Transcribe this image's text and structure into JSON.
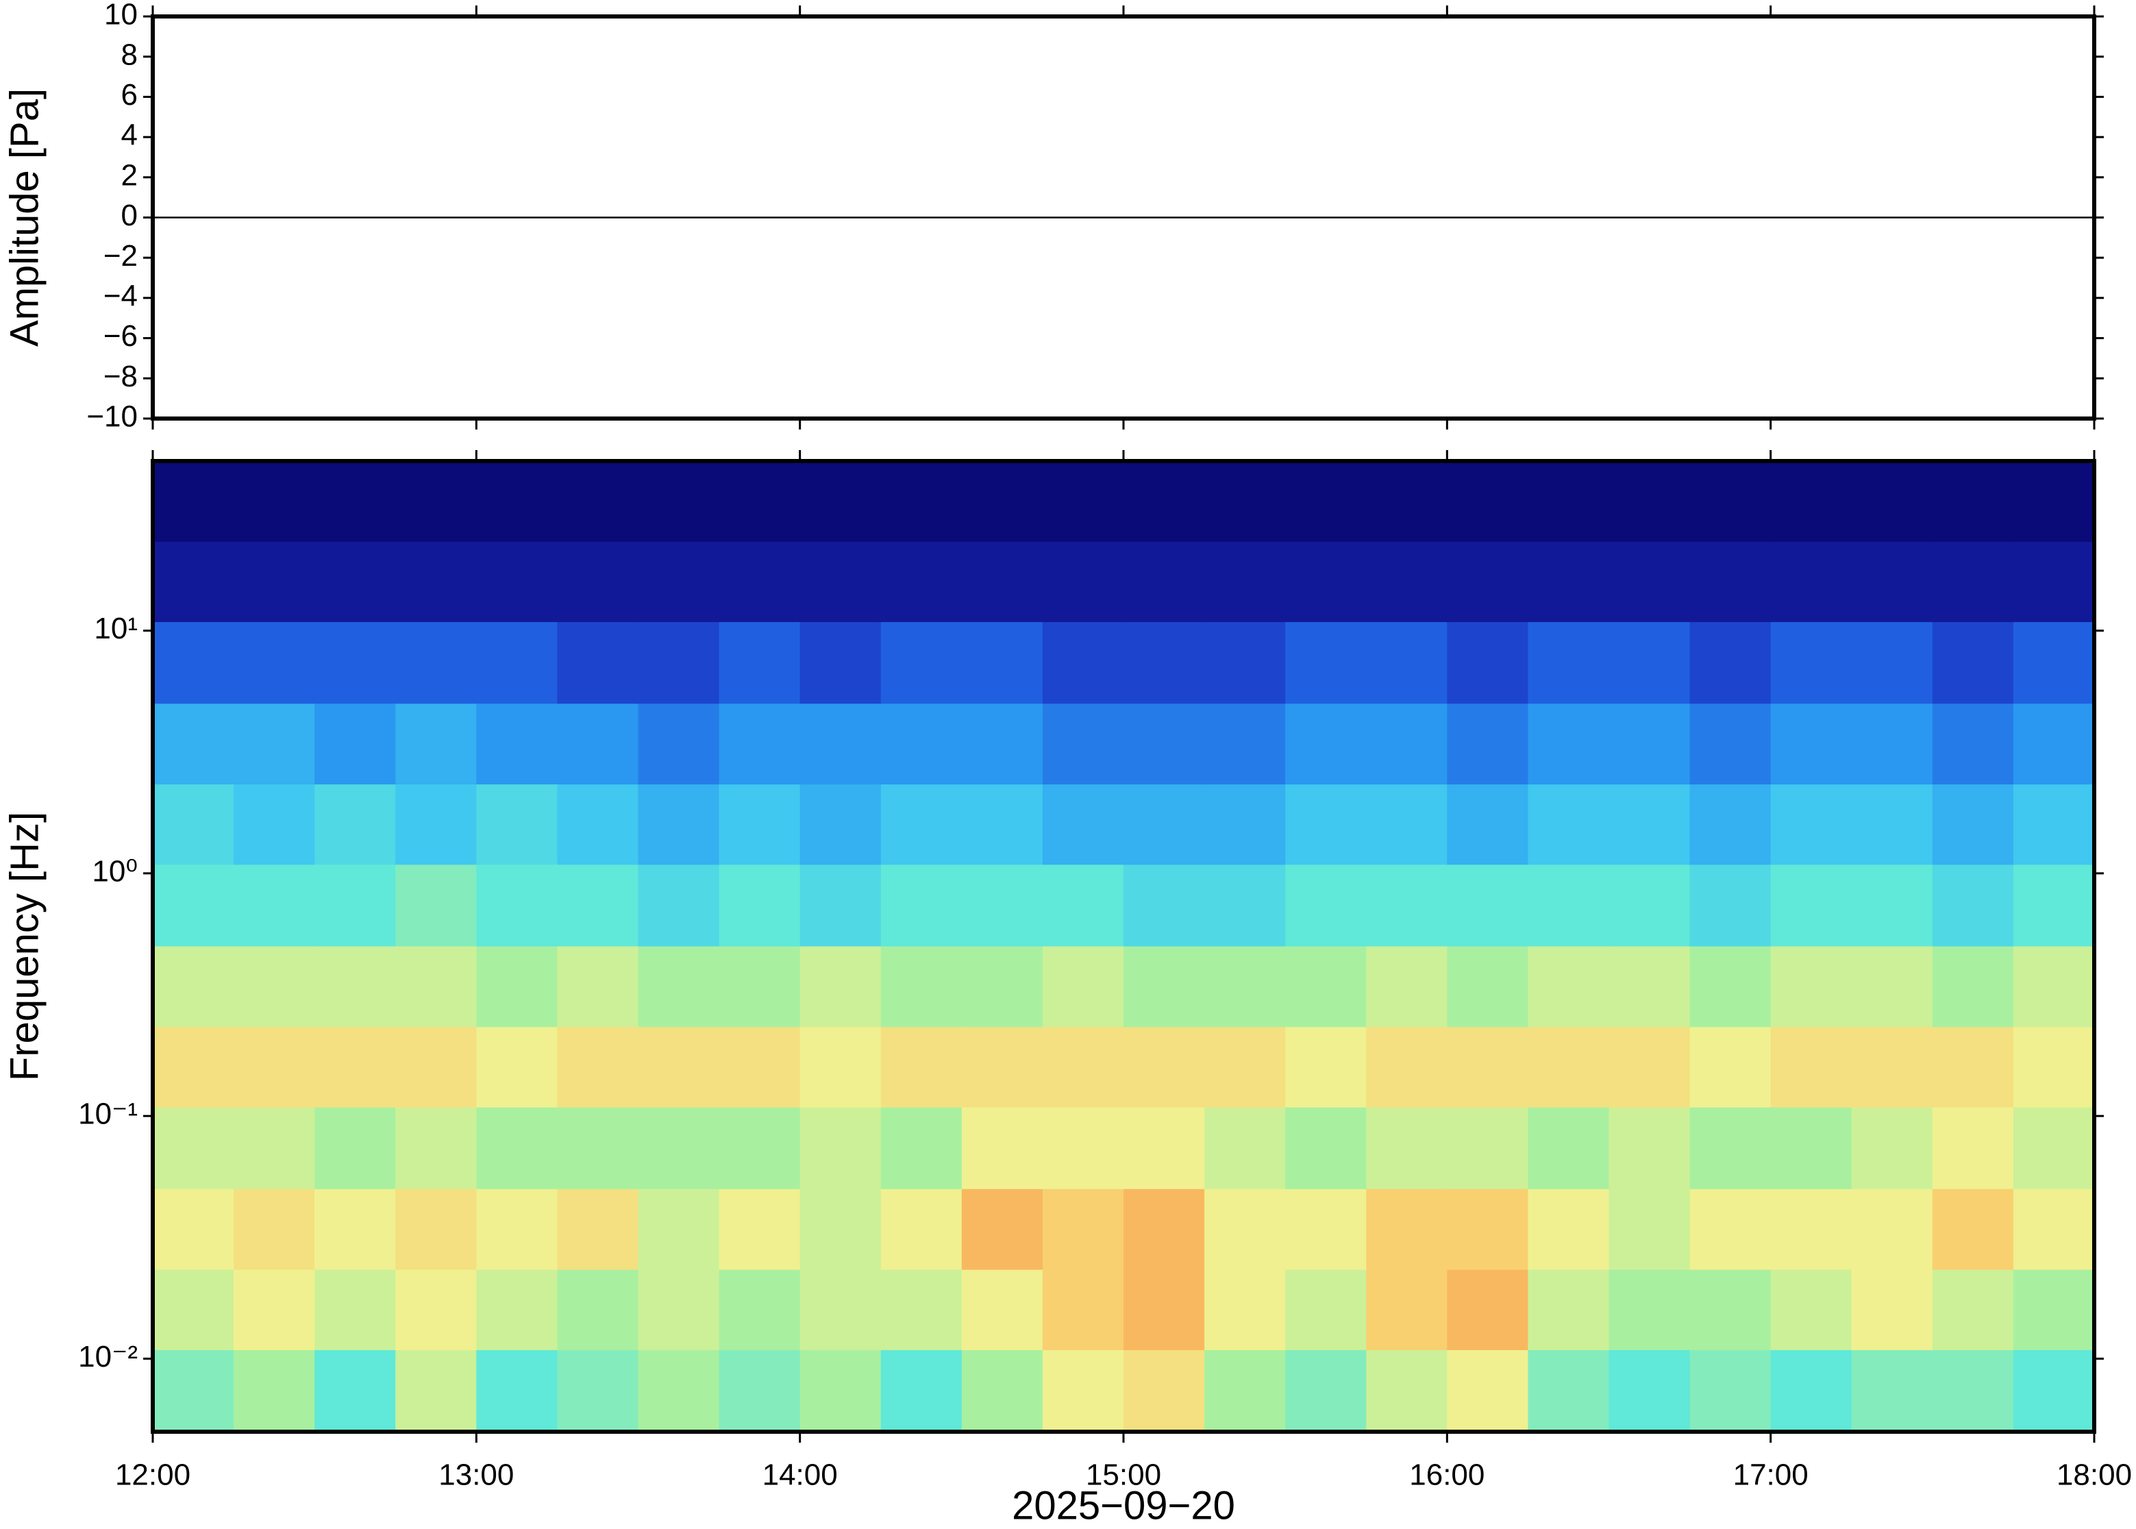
{
  "chart_data": [
    {
      "type": "line",
      "ylabel": "Amplitude [Pa]",
      "x": [
        "12:00",
        "13:00",
        "14:00",
        "15:00",
        "16:00",
        "17:00",
        "18:00"
      ],
      "series": [
        {
          "color": "#000000",
          "values": [
            0,
            0,
            0,
            0,
            0,
            0,
            0
          ]
        }
      ],
      "xlim": [
        "12:00",
        "18:00"
      ],
      "xticks": [
        "12:00",
        "13:00",
        "14:00",
        "15:00",
        "16:00",
        "17:00",
        "18:00"
      ],
      "ylim": [
        -10,
        10
      ],
      "yticks": [
        {
          "value": -10,
          "label": "−10"
        },
        {
          "value": -8,
          "label": "−8"
        },
        {
          "value": -6,
          "label": "−6"
        },
        {
          "value": -4,
          "label": "−4"
        },
        {
          "value": -2,
          "label": "−2"
        },
        0,
        2,
        4,
        6,
        8,
        10
      ]
    },
    {
      "type": "heatmap",
      "ylabel": "Frequency [Hz]",
      "xlabel": "2025−09−20",
      "log_y": true,
      "xlim": [
        "12:00",
        "18:00"
      ],
      "xticks": [
        "12:00",
        "13:00",
        "14:00",
        "15:00",
        "16:00",
        "17:00",
        "18:00"
      ],
      "ylim": [
        0.005,
        50
      ],
      "yticks": [
        {
          "value": 0.01,
          "label": "10⁻²"
        },
        {
          "value": 0.1,
          "label": "10⁻¹"
        },
        {
          "value": 1,
          "label": "10⁰"
        },
        {
          "value": 10,
          "label": "10¹"
        }
      ],
      "x": [
        "12:00",
        "12:15",
        "12:30",
        "12:45",
        "13:00",
        "13:15",
        "13:30",
        "13:45",
        "14:00",
        "14:15",
        "14:30",
        "14:45",
        "15:00",
        "15:15",
        "15:30",
        "15:45",
        "16:00",
        "16:15",
        "16:30",
        "16:45",
        "17:00",
        "17:15",
        "17:30",
        "17:45"
      ],
      "y": [
        0.0074,
        0.016,
        0.034,
        0.074,
        0.16,
        0.34,
        0.74,
        1.6,
        3.4,
        7.4,
        16,
        34
      ],
      "clim": [
        0,
        10
      ],
      "colors": [
        "#0a0a78",
        "#1a28b8",
        "#2060e0",
        "#2a98f0",
        "#40c8f0",
        "#60e8d8",
        "#a8f0a0",
        "#f0f090",
        "#f8d070",
        "#f8a050",
        "#e86030"
      ],
      "values": [
        [
          5.5,
          6,
          5,
          6.5,
          5,
          5.5,
          6,
          5.5,
          6,
          5,
          6,
          7,
          7.5,
          6,
          5.5,
          6.5,
          7,
          5.5,
          5,
          5.5,
          5,
          5.5,
          5.5,
          5
        ],
        [
          6.5,
          7,
          6.5,
          7,
          6.5,
          6,
          6.5,
          6,
          6.5,
          6.5,
          7,
          8,
          8.5,
          7,
          6.5,
          8,
          8.5,
          6.5,
          6,
          6,
          6.5,
          7,
          6.5,
          6
        ],
        [
          7,
          7.5,
          7,
          7.5,
          7,
          7.5,
          6.5,
          7,
          6.5,
          7,
          8.5,
          8,
          8.5,
          7,
          7,
          8,
          8,
          7,
          6.5,
          7,
          7,
          7,
          8,
          7
        ],
        [
          6.5,
          6.5,
          6,
          6.5,
          6,
          6,
          6,
          6,
          6.5,
          6,
          7,
          7,
          7,
          6.5,
          6,
          6.5,
          6.5,
          6,
          6.5,
          6,
          6,
          6.5,
          7,
          6.5
        ],
        [
          7.5,
          7.5,
          7.5,
          7.5,
          7,
          7.5,
          7.5,
          7.5,
          7,
          7.5,
          7.5,
          7.5,
          7.5,
          7.5,
          7,
          7.5,
          7.5,
          7.5,
          7.5,
          7,
          7.5,
          7.5,
          7.5,
          7
        ],
        [
          6.5,
          6.5,
          6.5,
          6.5,
          6,
          6.5,
          6,
          6,
          6.5,
          6,
          6,
          6.5,
          6,
          6,
          6,
          6.5,
          6,
          6.5,
          6.5,
          6,
          6.5,
          6.5,
          6,
          6.5
        ],
        [
          5,
          5,
          5,
          5.5,
          5,
          5,
          4.5,
          5,
          4.5,
          5,
          5,
          5,
          4.5,
          4.5,
          5,
          5,
          5,
          5,
          5,
          4.5,
          5,
          5,
          4.5,
          5
        ],
        [
          4.5,
          4,
          4.5,
          4,
          4.5,
          4,
          3.5,
          4,
          3.5,
          4,
          4,
          3.5,
          3.5,
          3.5,
          4,
          4,
          3.5,
          4,
          4,
          3.5,
          4,
          4,
          3.5,
          4
        ],
        [
          3.5,
          3.5,
          3,
          3.5,
          3,
          3,
          2.5,
          3,
          3,
          3,
          3,
          2.5,
          2.5,
          2.5,
          3,
          3,
          2.5,
          3,
          3,
          2.5,
          3,
          3,
          2.5,
          3
        ],
        [
          2,
          2,
          2,
          2,
          2,
          1.5,
          1.5,
          2,
          1.5,
          2,
          2,
          1.5,
          1.5,
          1.5,
          2,
          2,
          1.5,
          2,
          2,
          1.5,
          2,
          2,
          1.5,
          2
        ],
        [
          0.5,
          0.5,
          0.5,
          0.5,
          0.5,
          0.5,
          0.5,
          0.5,
          0.5,
          0.5,
          0.5,
          0.5,
          0.5,
          0.5,
          0.5,
          0.5,
          0.5,
          0.5,
          0.5,
          0.5,
          0.5,
          0.5,
          0.5,
          0.5
        ],
        [
          0,
          0,
          0,
          0,
          0,
          0,
          0,
          0,
          0,
          0,
          0,
          0,
          0,
          0,
          0,
          0,
          0,
          0,
          0,
          0,
          0,
          0,
          0,
          0
        ]
      ]
    }
  ]
}
